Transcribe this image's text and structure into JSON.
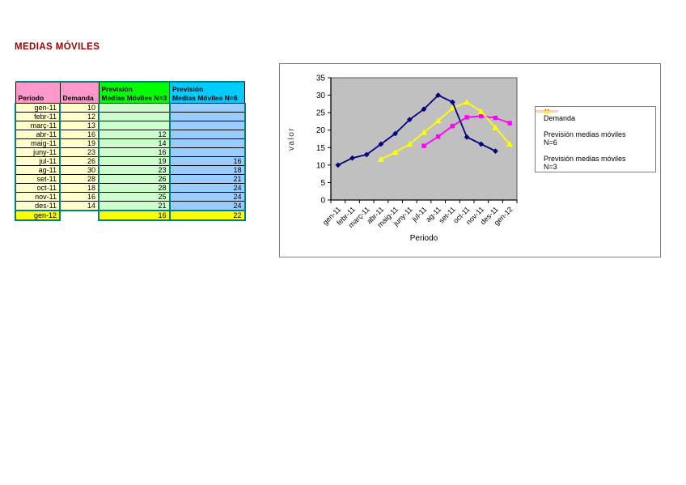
{
  "page": {
    "title": "MEDIAS MÓVILES"
  },
  "table": {
    "headers": {
      "period": "Periodo",
      "demand": "Demanda",
      "n3_line1": "Previsión",
      "n3_line2": "Medias Móviles N=3",
      "n6_line1": "Previsión",
      "n6_line2": "Medias Móviles N=6"
    },
    "rows": [
      {
        "period": "gen-11",
        "demand": "10",
        "n3": "",
        "n6": ""
      },
      {
        "period": "febr-11",
        "demand": "12",
        "n3": "",
        "n6": ""
      },
      {
        "period": "març-11",
        "demand": "13",
        "n3": "",
        "n6": ""
      },
      {
        "period": "abr-11",
        "demand": "16",
        "n3": "12",
        "n6": ""
      },
      {
        "period": "maig-11",
        "demand": "19",
        "n3": "14",
        "n6": ""
      },
      {
        "period": "juny-11",
        "demand": "23",
        "n3": "16",
        "n6": ""
      },
      {
        "period": "jul-11",
        "demand": "26",
        "n3": "19",
        "n6": "16"
      },
      {
        "period": "ag-11",
        "demand": "30",
        "n3": "23",
        "n6": "18"
      },
      {
        "period": "set-11",
        "demand": "28",
        "n3": "26",
        "n6": "21"
      },
      {
        "period": "oct-11",
        "demand": "18",
        "n3": "28",
        "n6": "24"
      },
      {
        "period": "nov-11",
        "demand": "16",
        "n3": "25",
        "n6": "24"
      },
      {
        "period": "des-11",
        "demand": "14",
        "n3": "21",
        "n6": "24"
      },
      {
        "period": "gen-12",
        "demand": "",
        "n3": "16",
        "n6": "22",
        "total": true
      }
    ]
  },
  "chart_data": {
    "type": "line",
    "title": "",
    "xlabel": "Periodo",
    "ylabel": "valor",
    "ylim": [
      0,
      35
    ],
    "ytick_step": 5,
    "grid": false,
    "plot_bg": "#C0C0C0",
    "legend_position": "right",
    "categories": [
      "gen-11",
      "febr-11",
      "març-11",
      "abr-11",
      "maig-11",
      "juny-11",
      "jul-11",
      "ag-11",
      "set-11",
      "oct-11",
      "nov-11",
      "des-11",
      "gen-12"
    ],
    "series": [
      {
        "name": "Demanda",
        "name2": "",
        "color": "#000080",
        "marker": "diamond",
        "values": [
          10,
          12,
          13,
          16,
          19,
          23,
          26,
          30,
          28,
          18,
          16,
          14,
          null
        ]
      },
      {
        "name": "Previsión medias móviles",
        "name2": "N=6",
        "color": "#FF00FF",
        "marker": "square",
        "values": [
          null,
          null,
          null,
          null,
          null,
          null,
          15.5,
          18.17,
          21.17,
          23.67,
          24,
          23.5,
          22
        ]
      },
      {
        "name": "Previsión medias móviles",
        "name2": "N=3",
        "color": "#FFFF00",
        "marker": "triangle",
        "values": [
          null,
          null,
          null,
          11.67,
          13.67,
          16,
          19.33,
          22.67,
          26.33,
          28,
          25.33,
          20.67,
          16
        ]
      }
    ]
  },
  "colors": {
    "title_text": "#990000",
    "header_pink": "#FF99CC",
    "header_green": "#00FF00",
    "header_cyan": "#00CCFF",
    "cell_yellow_light": "#FFFFCC",
    "cell_green_light": "#CCFFCC",
    "cell_blue_light": "#99CCFF",
    "total_yellow": "#FFFF00",
    "table_border_teal": "#008080",
    "plot_background": "#C0C0C0"
  }
}
